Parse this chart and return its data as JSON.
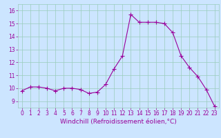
{
  "x": [
    0,
    1,
    2,
    3,
    4,
    5,
    6,
    7,
    8,
    9,
    10,
    11,
    12,
    13,
    14,
    15,
    16,
    17,
    18,
    19,
    20,
    21,
    22,
    23
  ],
  "y": [
    9.8,
    10.1,
    10.1,
    10.0,
    9.8,
    10.0,
    10.0,
    9.9,
    9.6,
    9.7,
    10.3,
    11.5,
    12.5,
    15.7,
    15.1,
    15.1,
    15.1,
    15.0,
    14.3,
    12.5,
    11.6,
    10.9,
    9.9,
    8.6
  ],
  "line_color": "#990099",
  "marker": "+",
  "markersize": 4,
  "linewidth": 0.8,
  "markeredgewidth": 0.8,
  "xlabel": "Windchill (Refroidissement éolien,°C)",
  "xlim": [
    -0.5,
    23.5
  ],
  "ylim": [
    8.5,
    16.5
  ],
  "yticks": [
    9,
    10,
    11,
    12,
    13,
    14,
    15,
    16
  ],
  "xticks": [
    0,
    1,
    2,
    3,
    4,
    5,
    6,
    7,
    8,
    9,
    10,
    11,
    12,
    13,
    14,
    15,
    16,
    17,
    18,
    19,
    20,
    21,
    22,
    23
  ],
  "bg_color": "#cce5ff",
  "grid_color": "#99ccbb",
  "label_fontsize": 6.5,
  "tick_fontsize": 5.5
}
